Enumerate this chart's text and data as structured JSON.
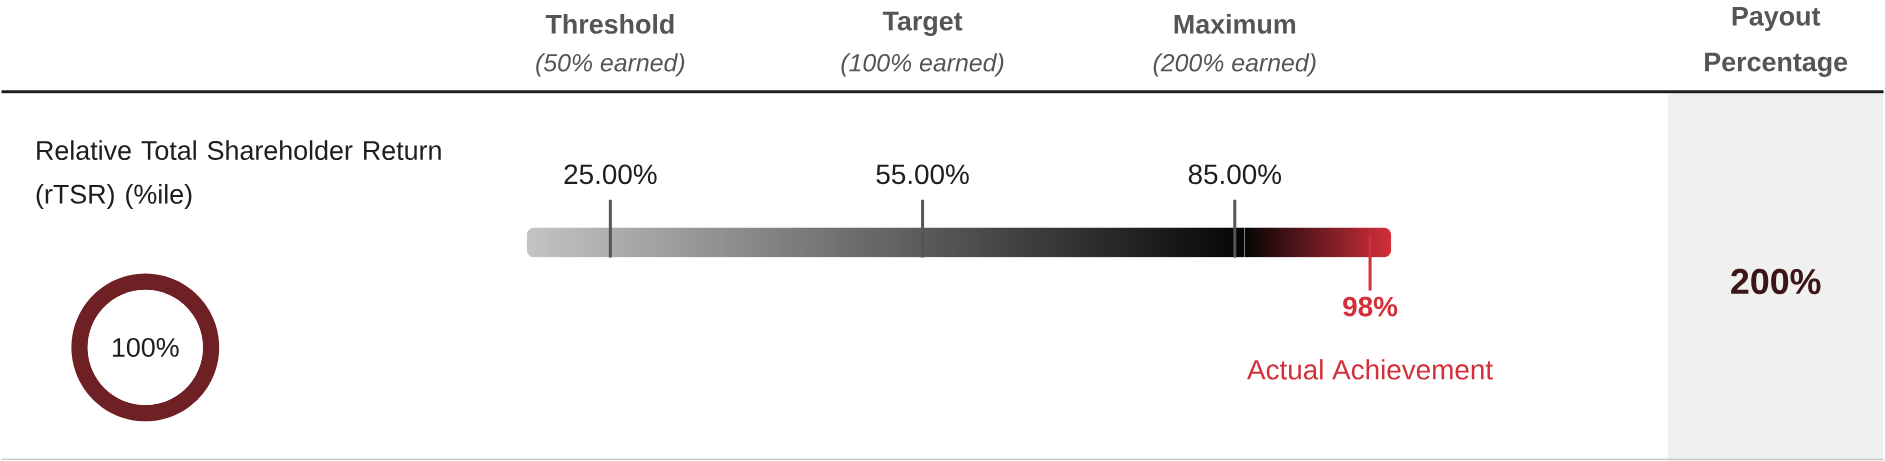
{
  "chart_data": [
    {
      "type": "other",
      "title": "Relative Total Shareholder Return (rTSR) (%ile)",
      "categories": [
        "Threshold",
        "Target",
        "Maximum",
        null
      ],
      "values": [
        25,
        55,
        85,
        98
      ],
      "value_labels": [
        "25.00%",
        "55.00%",
        "85.00%",
        "98%"
      ],
      "colors": [
        "#555555",
        "#555555",
        "#555555",
        "#d32f3a"
      ],
      "annotations": [
        "(50% earned)",
        "(100% earned)",
        "(200% earned)",
        "Actual Achievement",
        "Payout Percentage",
        "200%"
      ]
    },
    {
      "type": "donut",
      "categories": [
        null
      ],
      "values": [
        100
      ],
      "colors": [
        "#6e2025"
      ],
      "value_labels": [
        "100%"
      ]
    }
  ]
}
